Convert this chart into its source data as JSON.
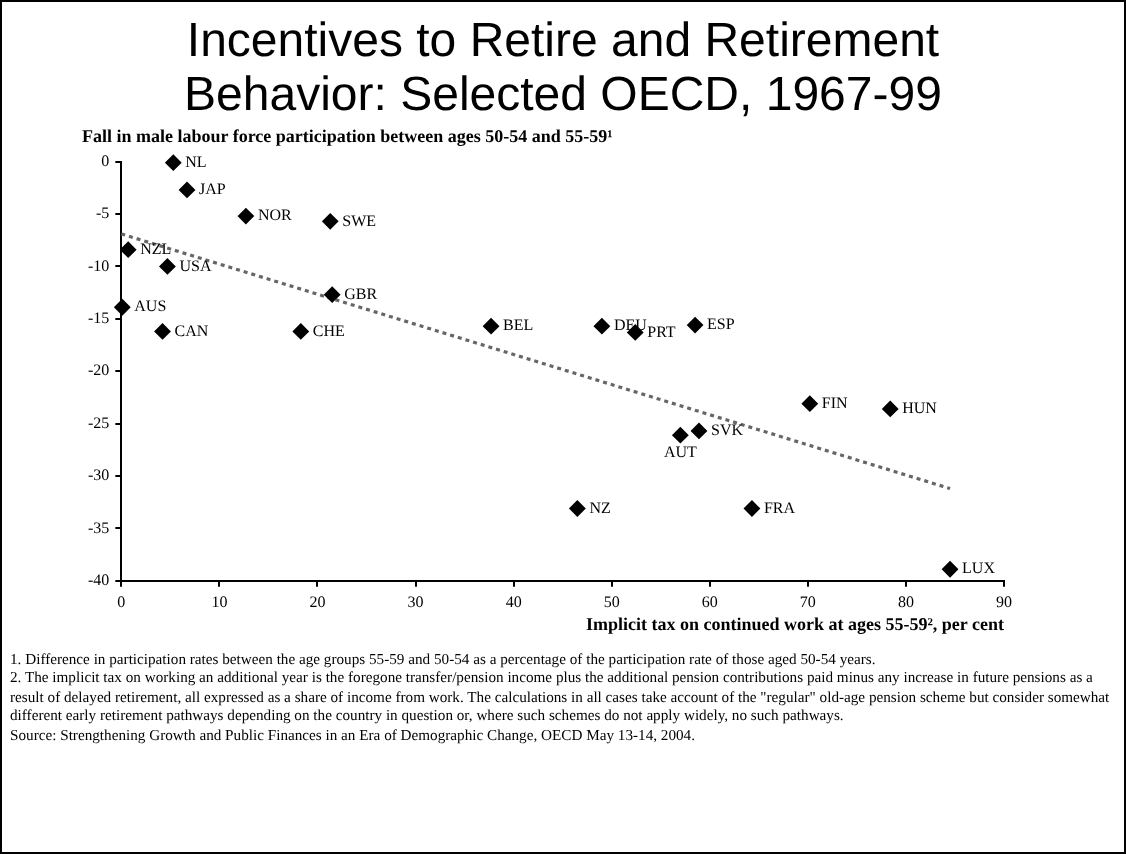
{
  "chart_data": {
    "type": "scatter",
    "title": "Incentives to Retire and Retirement Behavior: Selected OECD, 1967-99",
    "ylabel": "Fall in male labour force participation between ages 50-54 and 55-59¹",
    "xlabel": "Implicit tax on continued work at ages 55-59², per cent",
    "x": [
      5.3,
      6.7,
      12.7,
      21.3,
      0.7,
      4.7,
      0.1,
      4.2,
      18.3,
      21.5,
      37.7,
      49,
      52.4,
      58.5,
      70.2,
      78.4,
      58.9,
      57,
      46.5,
      64.3,
      84.5
    ],
    "series": [
      {
        "color": "#000000",
        "values": [
          -0.1,
          -2.7,
          -5.2,
          -5.7,
          -8.4,
          -10,
          -13.9,
          -16.2,
          -16.2,
          -12.7,
          -15.7,
          -15.7,
          -16.3,
          -15.6,
          -23.1,
          -23.6,
          -25.7,
          -26.1,
          -33.1,
          -33.1,
          -38.9
        ]
      },
      {
        "type": "line",
        "x": [
          0,
          84.5
        ],
        "values": [
          -6.9,
          -31.2
        ],
        "color": "#666666",
        "line_style": "dotted",
        "marker": "none"
      }
    ],
    "marker": "diamond",
    "xlim": [
      0,
      90
    ],
    "xticks": [
      0,
      10,
      20,
      30,
      40,
      50,
      60,
      70,
      80,
      90
    ],
    "ylim": [
      -40,
      0
    ],
    "yticks": [
      0,
      -5,
      -10,
      -15,
      -20,
      -25,
      -30,
      -35,
      -40
    ],
    "grid": false,
    "legend": false,
    "annotations": [
      {
        "text": "NL",
        "x": 5.3,
        "y": -0.1
      },
      {
        "text": "JAP",
        "x": 6.7,
        "y": -2.7
      },
      {
        "text": "NOR",
        "x": 12.7,
        "y": -5.2
      },
      {
        "text": "SWE",
        "x": 21.3,
        "y": -5.7
      },
      {
        "text": "NZL",
        "x": 0.7,
        "y": -8.4
      },
      {
        "text": "USA",
        "x": 4.7,
        "y": -10
      },
      {
        "text": "AUS",
        "x": 0.1,
        "y": -13.9
      },
      {
        "text": "CAN",
        "x": 4.2,
        "y": -16.2
      },
      {
        "text": "CHE",
        "x": 18.3,
        "y": -16.2
      },
      {
        "text": "GBR",
        "x": 21.5,
        "y": -12.7
      },
      {
        "text": "BEL",
        "x": 37.7,
        "y": -15.7
      },
      {
        "text": "DEU",
        "x": 49,
        "y": -15.7
      },
      {
        "text": "PRT",
        "x": 52.4,
        "y": -16.3
      },
      {
        "text": "ESP",
        "x": 58.5,
        "y": -15.6
      },
      {
        "text": "FIN",
        "x": 70.2,
        "y": -23.1
      },
      {
        "text": "HUN",
        "x": 78.4,
        "y": -23.6
      },
      {
        "text": "SVK",
        "x": 58.9,
        "y": -25.7
      },
      {
        "text": "AUT",
        "x": 57,
        "y": -26.1
      },
      {
        "text": "NZ",
        "x": 46.5,
        "y": -33.1
      },
      {
        "text": "FRA",
        "x": 64.3,
        "y": -33.1
      },
      {
        "text": "LUX",
        "x": 84.5,
        "y": -38.9
      },
      "1. Difference in participation rates between the age groups 55-59 and 50-54 as a percentage of the participation rate of those aged 50-54 years.",
      "2. The implicit tax on working an additional year is the foregone transfer/pension income plus the additional pension contributions paid minus any increase in future pensions as a result of delayed retirement, all expressed as a share of income from work. The calculations in all cases take account of the \"regular\" old-age pension scheme but consider somewhat different early retirement pathways depending on the country in question or, where such schemes do not apply widely, no such pathways.",
      "Source: Strengthening Growth and Public Finances in an Era of Demographic Change, OECD May 13-14, 2004."
    ]
  }
}
